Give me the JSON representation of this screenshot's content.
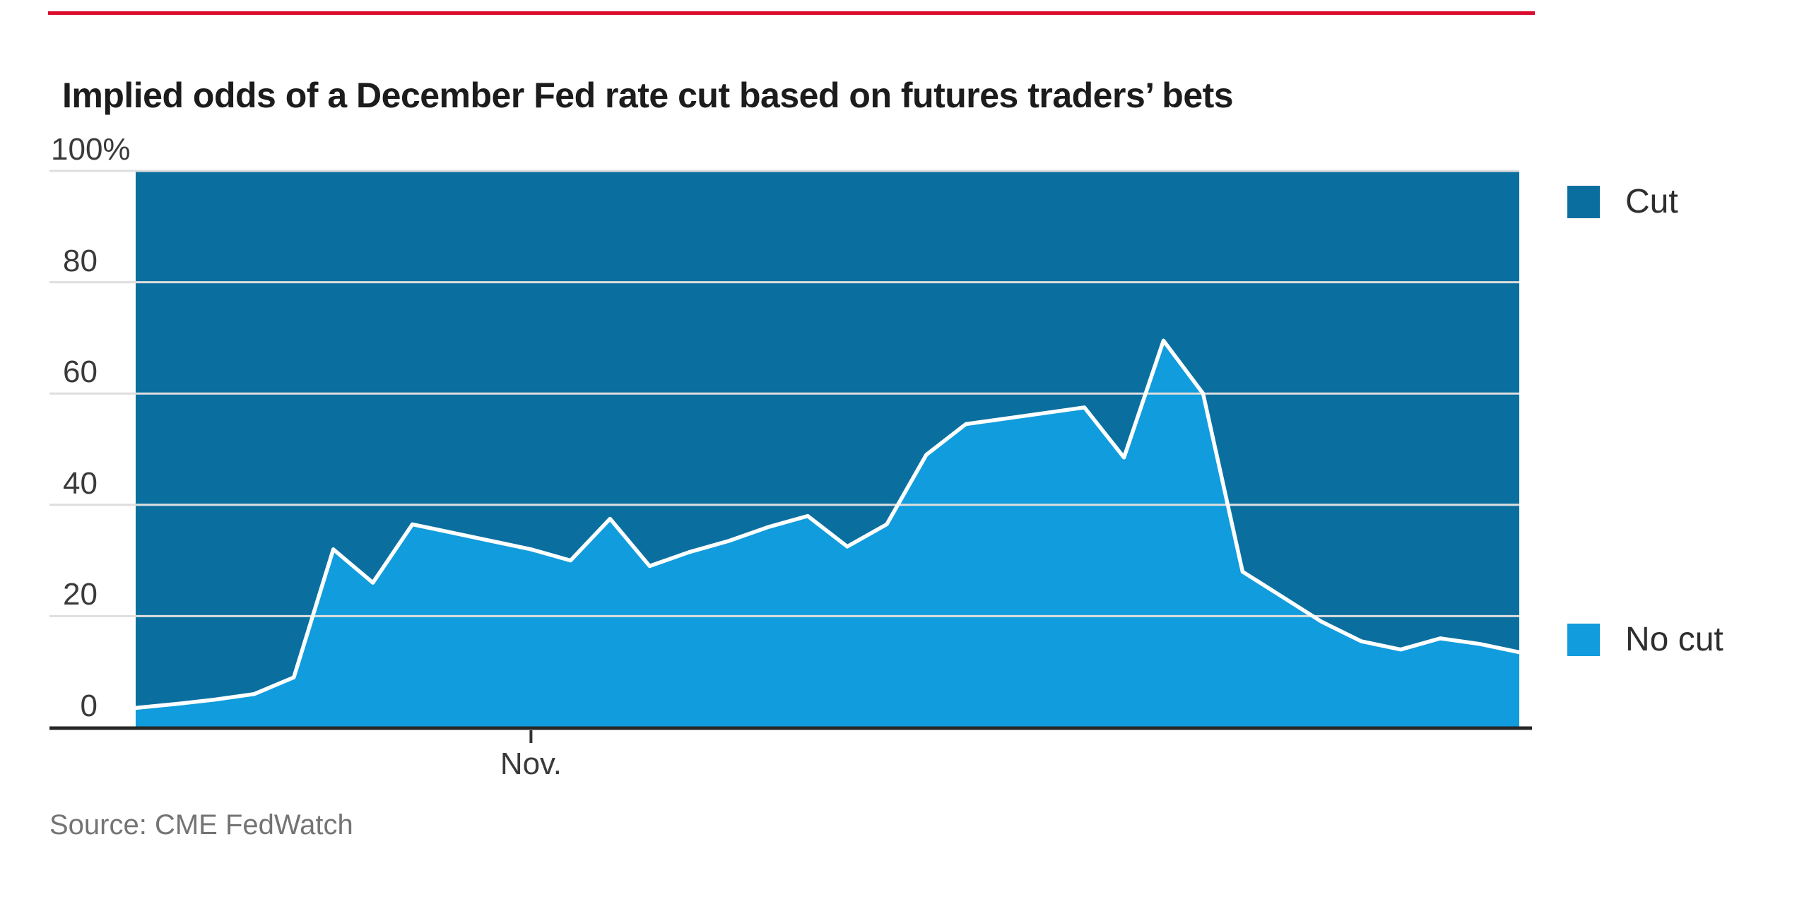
{
  "top_rule": {
    "color": "#da0b2c"
  },
  "header": {
    "title": "Implied odds of a December Fed rate cut based on futures traders’ bets"
  },
  "legend": {
    "position": "right",
    "items": [
      {
        "label": "Cut",
        "color": "#0a6f9f"
      },
      {
        "label": "No cut",
        "color": "#109cdd"
      }
    ]
  },
  "footer": {
    "source": "Source: CME FedWatch"
  },
  "chart_data": {
    "type": "area",
    "stacked": true,
    "title": "Implied odds of a December Fed rate cut based on futures traders’ bets",
    "xlabel": "",
    "ylabel": "",
    "ylim": [
      0,
      100
    ],
    "grid": "horizontal",
    "gridline_color": "#dedede",
    "axis_line_color": "#262626",
    "boundary_line_color": "#ffffff",
    "y_ticks": [
      {
        "value": 100,
        "label": "100%"
      },
      {
        "value": 80,
        "label": "80"
      },
      {
        "value": 60,
        "label": "60"
      },
      {
        "value": 40,
        "label": "40"
      },
      {
        "value": 20,
        "label": "20"
      },
      {
        "value": 0,
        "label": "0"
      }
    ],
    "x_tick": {
      "index": 10,
      "label": "Nov."
    },
    "n_points": 36,
    "series": [
      {
        "name": "Cut",
        "color": "#0a6f9f",
        "position": "top",
        "values_pct": [
          96.5,
          95.8,
          95,
          94,
          91,
          68,
          74,
          63.5,
          65,
          66.5,
          68,
          70,
          62.5,
          71,
          68.5,
          66.5,
          64,
          62,
          67.5,
          63.5,
          51,
          45.5,
          44.5,
          43.5,
          42.5,
          51.5,
          30.5,
          40,
          72,
          76.5,
          81,
          84.5,
          86,
          84,
          85,
          86.5
        ]
      },
      {
        "name": "No cut",
        "color": "#109cdd",
        "position": "bottom",
        "values_pct": [
          3.5,
          4.2,
          5,
          6,
          9,
          32,
          26,
          36.5,
          35,
          33.5,
          32,
          30,
          37.5,
          29,
          31.5,
          33.5,
          36,
          38,
          32.5,
          36.5,
          49,
          54.5,
          55.5,
          56.5,
          57.5,
          48.5,
          69.5,
          60,
          28,
          23.5,
          19,
          15.5,
          14,
          16,
          15,
          13.5
        ]
      }
    ]
  }
}
